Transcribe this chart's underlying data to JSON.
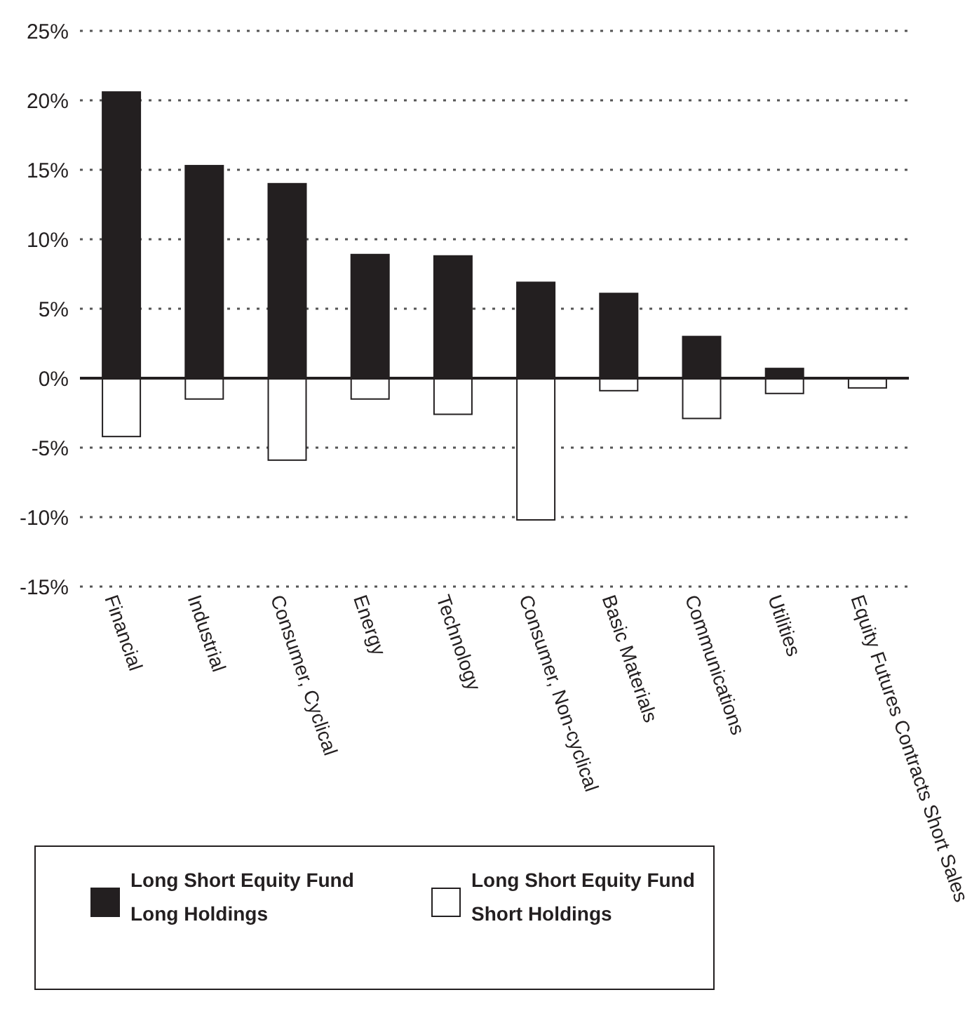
{
  "chart_data": {
    "type": "bar",
    "categories": [
      "Financial",
      "Industrial",
      "Consumer, Cyclical",
      "Energy",
      "Technology",
      "Consumer, Non-cyclical",
      "Basic Materials",
      "Communications",
      "Utilities",
      "Equity Futures Contracts Short Sales"
    ],
    "series": [
      {
        "name": "Long Short Equity Fund Long Holdings",
        "color": "#231f20",
        "values": [
          20.6,
          15.3,
          14.0,
          8.9,
          8.8,
          6.9,
          6.1,
          3.0,
          0.7,
          null
        ]
      },
      {
        "name": "Long Short Equity Fund Short Holdings",
        "color": "#ffffff",
        "values": [
          -4.2,
          -1.5,
          -5.9,
          -1.5,
          -2.6,
          -10.2,
          -0.9,
          -2.9,
          -1.1,
          -0.7
        ]
      }
    ],
    "ylim": [
      -15,
      25
    ],
    "yticks": [
      {
        "value": 25,
        "label": "25%"
      },
      {
        "value": 20,
        "label": "20%"
      },
      {
        "value": 15,
        "label": "15%"
      },
      {
        "value": 10,
        "label": "10%"
      },
      {
        "value": 5,
        "label": "5%"
      },
      {
        "value": 0,
        "label": "0%"
      },
      {
        "value": -5,
        "label": "-5%"
      },
      {
        "value": -10,
        "label": "-10%"
      },
      {
        "value": -15,
        "label": "-15%"
      }
    ],
    "grid": "y",
    "legend": "bottom",
    "stacked": true
  }
}
